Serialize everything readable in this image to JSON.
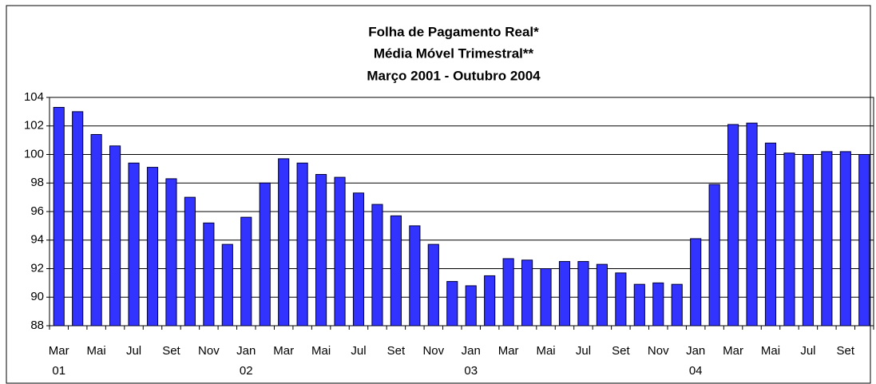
{
  "chart_data": {
    "type": "bar",
    "title": [
      "Folha de Pagamento Real*",
      "Média Móvel Trimestral**",
      "Março 2001 - Outubro 2004"
    ],
    "categories": [
      "Mar",
      null,
      "Mai",
      null,
      "Jul",
      null,
      "Set",
      null,
      "Nov",
      null,
      "Jan",
      null,
      "Mar",
      null,
      "Mai",
      null,
      "Jul",
      null,
      "Set",
      null,
      "Nov",
      null,
      "Jan",
      null,
      "Mar",
      null,
      "Mai",
      null,
      "Jul",
      null,
      "Set",
      null,
      "Nov",
      null,
      "Jan",
      null,
      "Mar",
      null,
      "Mai",
      null,
      "Jul",
      null,
      "Set",
      null
    ],
    "category_groups": [
      "01",
      null,
      null,
      null,
      null,
      null,
      null,
      null,
      null,
      null,
      "02",
      null,
      null,
      null,
      null,
      null,
      null,
      null,
      null,
      null,
      null,
      null,
      "03",
      null,
      null,
      null,
      null,
      null,
      null,
      null,
      null,
      null,
      null,
      null,
      "04",
      null,
      null,
      null,
      null,
      null,
      null,
      null,
      null,
      null
    ],
    "values": [
      103.3,
      103.0,
      101.4,
      100.6,
      99.4,
      99.1,
      98.3,
      97.0,
      95.2,
      93.7,
      95.6,
      98.0,
      99.7,
      99.4,
      98.6,
      98.4,
      97.3,
      96.5,
      95.7,
      95.0,
      93.7,
      91.1,
      90.8,
      91.5,
      92.7,
      92.6,
      92.0,
      92.5,
      92.5,
      92.3,
      91.7,
      90.9,
      91.0,
      90.9,
      94.1,
      97.9,
      102.1,
      102.2,
      100.8,
      100.1,
      100.0,
      100.2,
      100.2,
      100.0
    ],
    "color": "#3333ff",
    "ylim": [
      88,
      104
    ],
    "yticks": [
      88,
      90,
      92,
      94,
      96,
      98,
      100,
      102,
      104
    ],
    "grid": true
  }
}
